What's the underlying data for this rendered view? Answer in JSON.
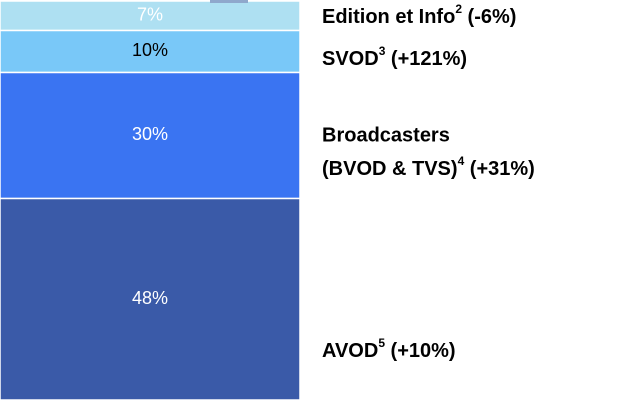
{
  "chart_data": {
    "type": "bar",
    "stacked": true,
    "unit": "%",
    "segments": [
      {
        "value_label": "48%",
        "value": 48,
        "name": "AVOD",
        "footnote": "5",
        "change": " (+10%)",
        "name_line2": "",
        "color": "#3a5aa8",
        "text_color": "#ffffff"
      },
      {
        "value_label": "30%",
        "value": 30,
        "name": "Broadcasters",
        "footnote": "4",
        "change": " (+31%)",
        "name_line2": "(BVOD & TVS)",
        "color": "#3a74f2",
        "text_color": "#ffffff"
      },
      {
        "value_label": "10%",
        "value": 10,
        "name": "SVOD",
        "footnote": "3",
        "change": " (+121%)",
        "name_line2": "",
        "color": "#79c8f8",
        "text_color": "#000000"
      },
      {
        "value_label": "7%",
        "value": 7,
        "name": "Edition et Info",
        "footnote": "2",
        "change": " (-6%)",
        "name_line2": "",
        "color": "#aee0f2",
        "text_color": "#ffffff"
      }
    ],
    "visible_top_value": 95,
    "y_visible_range": [
      0,
      95
    ]
  }
}
